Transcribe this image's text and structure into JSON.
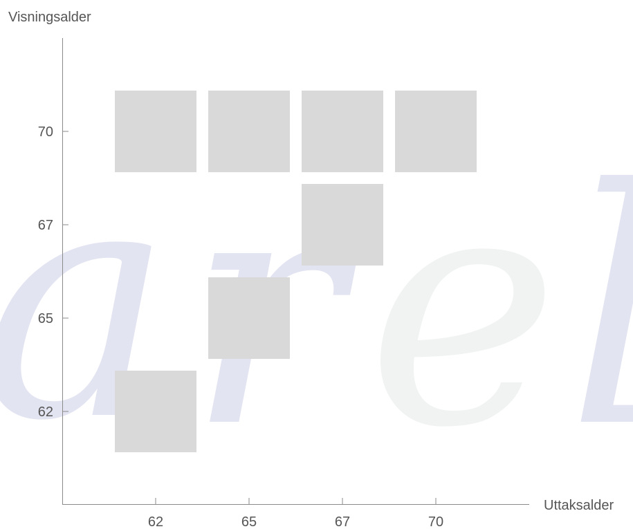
{
  "chart_data": {
    "type": "heatmap",
    "title": "",
    "xlabel": "Uttaksalder",
    "ylabel": "Visningsalder",
    "x_categories": [
      "62",
      "65",
      "67",
      "70"
    ],
    "y_categories": [
      "62",
      "65",
      "67",
      "70"
    ],
    "cells": [
      {
        "x": "62",
        "y": "70"
      },
      {
        "x": "65",
        "y": "70"
      },
      {
        "x": "67",
        "y": "70"
      },
      {
        "x": "70",
        "y": "70"
      },
      {
        "x": "67",
        "y": "67"
      },
      {
        "x": "65",
        "y": "65"
      },
      {
        "x": "62",
        "y": "62"
      }
    ],
    "grid": false,
    "legend": "none",
    "colors": {
      "cell": "#d9d9d9",
      "axis": "#8a8a8a",
      "text": "#555555"
    }
  }
}
